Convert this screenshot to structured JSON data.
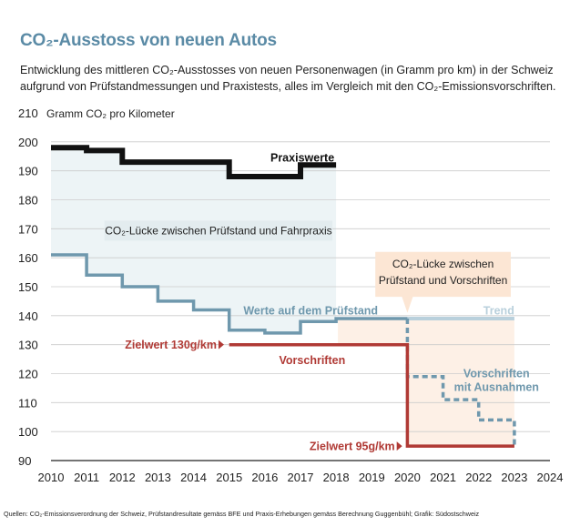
{
  "title": "CO₂-Ausstoss von neuen Autos",
  "subtitle": "Entwicklung des mittleren CO₂-Ausstosses von neuen Personenwagen (in Gramm pro km) in der Schweiz aufgrund von Prüfstandmessungen und Praxistests, alles im Vergleich mit den CO₂-Emissionsvorschriften.",
  "source": "Quellen: CO₂-Emissionsverordnung der Schweiz, Prüfstandresultate gemäss BFE und Praxis-Erhebungen gemäss Berechnung Guggenbühl; Grafik: Südostschweiz",
  "colors": {
    "praxis": "#111111",
    "pruefstand": "#6f98ad",
    "trend": "#b9d0dc",
    "vorschriften": "#b03a35",
    "ausnahmen": "#6f98ad",
    "gap_area": "#edf4f6",
    "gap_area_2": "#fdf0e6",
    "callout_bg": "#fce6d4",
    "gridline": "#cccccc"
  },
  "chart_data": {
    "type": "line",
    "ylabel": "Gramm CO₂ pro Kilometer",
    "xlim": [
      2010,
      2024
    ],
    "ylim": [
      90,
      210
    ],
    "x_ticks": [
      "2010",
      "2011",
      "2012",
      "2013",
      "2014",
      "2015",
      "2016",
      "2017",
      "2018",
      "2019",
      "2020",
      "2021",
      "2022",
      "2023",
      "2024"
    ],
    "y_ticks": [
      "210",
      "200",
      "190",
      "180",
      "170",
      "160",
      "150",
      "140",
      "130",
      "120",
      "110",
      "100",
      "90"
    ],
    "grid": true,
    "series": [
      {
        "name": "Praxiswerte",
        "step": true,
        "points": [
          [
            2010,
            198
          ],
          [
            2011,
            197
          ],
          [
            2012,
            193
          ],
          [
            2013,
            193
          ],
          [
            2014,
            193
          ],
          [
            2015,
            188
          ],
          [
            2016,
            188
          ],
          [
            2017,
            192
          ],
          [
            2018,
            192
          ]
        ]
      },
      {
        "name": "Werte auf dem Prüfstand",
        "step": true,
        "points": [
          [
            2010,
            161
          ],
          [
            2011,
            154
          ],
          [
            2012,
            150
          ],
          [
            2013,
            145
          ],
          [
            2014,
            142
          ],
          [
            2015,
            135
          ],
          [
            2016,
            134
          ],
          [
            2017,
            138
          ],
          [
            2018,
            139
          ],
          [
            2019,
            139
          ],
          [
            2020,
            139
          ]
        ]
      },
      {
        "name": "Trend",
        "points": [
          [
            2020,
            139
          ],
          [
            2023,
            139
          ]
        ]
      },
      {
        "name": "Vorschriften",
        "step": true,
        "points": [
          [
            2015,
            130
          ],
          [
            2020,
            130
          ],
          [
            2020,
            95
          ],
          [
            2023,
            95
          ]
        ]
      },
      {
        "name": "Vorschriften mit Ausnahmen",
        "step": true,
        "points": [
          [
            2020,
            139
          ],
          [
            2020,
            119
          ],
          [
            2021,
            119
          ],
          [
            2021,
            111
          ],
          [
            2022,
            111
          ],
          [
            2022,
            104
          ],
          [
            2023,
            104
          ],
          [
            2023,
            95
          ]
        ]
      }
    ],
    "annotations": {
      "gap_praxis": "CO₂-Lücke zwischen Prüfstand und Fahrpraxis",
      "gap_vorschriften_line1": "CO₂-Lücke zwischen",
      "gap_vorschriften_line2": "Prüfstand und Vorschriften",
      "zielwert_130": "Zielwert 130g/km",
      "zielwert_95": "Zielwert 95g/km",
      "praxiswerte": "Praxiswerte",
      "pruefstand": "Werte auf dem Prüfstand",
      "trend": "Trend",
      "vorschriften": "Vorschriften",
      "ausnahmen_line1": "Vorschriften",
      "ausnahmen_line2": "mit Ausnahmen"
    }
  }
}
